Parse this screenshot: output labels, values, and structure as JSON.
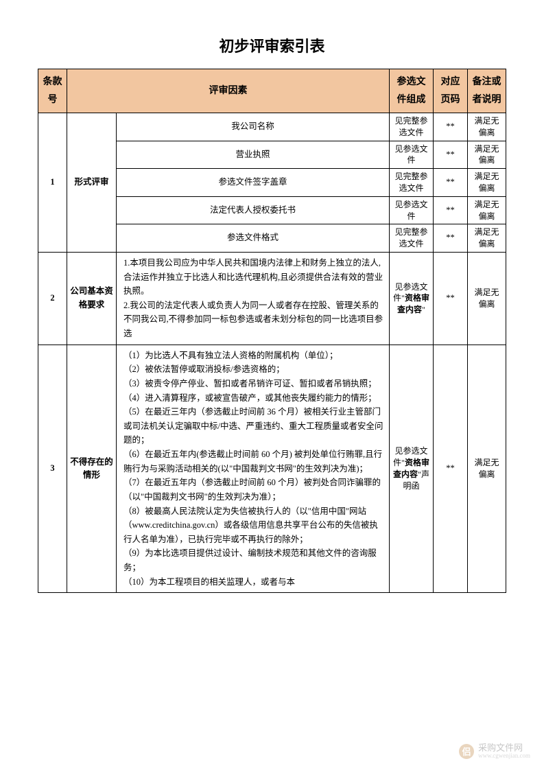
{
  "title": "初步评审索引表",
  "headers": {
    "num": "条款号",
    "factor": "评审因素",
    "comp": "参选文件组成",
    "page": "对应页码",
    "note": "备注或者说明"
  },
  "row1": {
    "num": "1",
    "cat": "形式评审",
    "items": [
      {
        "factor": "我公司名称",
        "comp": "见完整参选文件",
        "page": "**",
        "note": "满足无偏离"
      },
      {
        "factor": "营业执照",
        "comp": "见参选文件",
        "page": "**",
        "note": "满足无偏离"
      },
      {
        "factor": "参选文件签字盖章",
        "comp": "见完整参选文件",
        "page": "**",
        "note": "满足无偏离"
      },
      {
        "factor": "法定代表人授权委托书",
        "comp": "见参选文件",
        "page": "**",
        "note": "满足无偏离"
      },
      {
        "factor": "参选文件格式",
        "comp": "见完整参选文件",
        "page": "**",
        "note": "满足无偏离"
      }
    ]
  },
  "row2": {
    "num": "2",
    "cat": "公司基本资格要求",
    "desc": "1.本项目我公司应为中华人民共和国境内法律上和财务上独立的法人,合法运作并独立于比选人和比选代理机构,且必须提供合法有效的营业执照。\n2.我公司的法定代表人或负责人为同一人或者存在控股、管理关系的不同我公司,不得参加同一标包参选或者未划分标包的同一比选项目参选",
    "comp_pre": "见参选文件\"",
    "comp_bold": "资格审查内容",
    "comp_suf": "\"",
    "page": "**",
    "note": "满足无偏离"
  },
  "row3": {
    "num": "3",
    "cat": "不得存在的情形",
    "desc": "（1）为比选人不具有独立法人资格的附属机构（单位）；\n（2）被依法暂停或取消投标/参选资格的；\n（3）被责令停产停业、暂扣或者吊销许可证、暂扣或者吊销执照；\n（4）进入清算程序，或被宣告破产，或其他丧失履约能力的情形；\n（5）在最近三年内（参选截止时间前 36 个月）被相关行业主管部门或司法机关认定骗取中标/中选、严重违约、重大工程质量或者安全问题的；\n（6）在最近五年内(参选截止时间前 60 个月) 被判处单位行贿罪,且行贿行为与采购活动相关的(以\"中国裁判文书网\"的生效判决为准)；\n（7）在最近五年内（参选截止时间前 60 个月）被判处合同诈骗罪的（以\"中国裁判文书网\"的生效判决为准）；\n（8）被最高人民法院认定为失信被执行人的（以\"信用中国\"网站\n（www.creditchina.gov.cn）或各级信用信息共享平台公布的失信被执行人名单为准），已执行完毕或不再执行的除外；\n（9）为本比选项目提供过设计、编制技术规范和其他文件的咨询服务；\n（10）为本工程项目的相关监理人，或者与本",
    "comp_pre": "见参选文件\"",
    "comp_bold": "资格审查内容",
    "comp_suf": "\"声明函",
    "page": "**",
    "note": "满足无偏离"
  },
  "watermark": {
    "text1": "采购文件网",
    "text2": "www.cgwenjian.com"
  },
  "colors": {
    "header_bg": "#f2c6a0",
    "border": "#000000",
    "text": "#000000",
    "wm_icon_bg": "#d8b48a",
    "wm_text": "#999999"
  }
}
